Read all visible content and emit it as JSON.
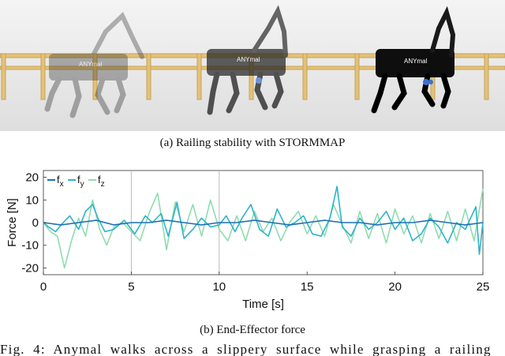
{
  "captions": {
    "a": "(a) Railing stability with STORMMAP",
    "b": "(b) End-Effector force",
    "figure": "Fig. 4: Anymal walks across a slippery surface while grasping a railing"
  },
  "robot_logo": "ANYmal",
  "colors": {
    "fx": "#1f6fb4",
    "fy": "#2eb3c9",
    "fz": "#8fdcb0",
    "rail": "#e2c27a",
    "floor_top": "#f6f6f6",
    "floor_bottom": "#d9d9d9"
  },
  "chart_data": {
    "type": "line",
    "xlabel": "Time [s]",
    "ylabel": "Force [N]",
    "xlim": [
      0,
      25
    ],
    "ylim": [
      -23,
      23
    ],
    "xticks": [
      0,
      5,
      10,
      15,
      20,
      25
    ],
    "yticks": [
      20,
      10,
      0,
      -10,
      -20
    ],
    "vlines": [
      5,
      10
    ],
    "legend": [
      "f_x",
      "f_y",
      "f_z"
    ],
    "legend_labels": [
      {
        "base": "f",
        "sub": "x"
      },
      {
        "base": "f",
        "sub": "y"
      },
      {
        "base": "f",
        "sub": "z"
      }
    ],
    "legend_position": "top-left",
    "series": [
      {
        "name": "f_x",
        "x": [
          0,
          1,
          2,
          3,
          4,
          5,
          6,
          7,
          8,
          9,
          10,
          11,
          12,
          13,
          14,
          15,
          16,
          17,
          18,
          19,
          20,
          21,
          22,
          23,
          24,
          25
        ],
        "y": [
          0,
          -1,
          0,
          1,
          -1,
          0,
          0,
          1,
          0,
          -1,
          0,
          0,
          1,
          0,
          -1,
          0,
          1,
          0,
          0,
          -1,
          0,
          0,
          1,
          0,
          -1,
          0
        ]
      },
      {
        "name": "f_y",
        "x": [
          0,
          0.3,
          0.7,
          1.0,
          1.5,
          2.0,
          2.4,
          2.8,
          3.1,
          3.5,
          4.0,
          4.6,
          5.2,
          5.8,
          6.2,
          6.7,
          7.1,
          7.6,
          8.0,
          8.5,
          9.0,
          9.5,
          10.0,
          10.4,
          10.9,
          11.3,
          11.8,
          12.3,
          12.8,
          13.3,
          13.8,
          14.3,
          14.8,
          15.3,
          15.8,
          16.3,
          16.7,
          17.0,
          17.5,
          18.0,
          18.5,
          19.0,
          19.5,
          20.0,
          20.5,
          21.0,
          21.5,
          22.0,
          22.5,
          23.0,
          23.5,
          24.0,
          24.3,
          24.6,
          24.8,
          25.0
        ],
        "y": [
          0,
          -2,
          -4,
          -1,
          3,
          -3,
          5,
          8,
          2,
          -4,
          -3,
          1,
          -5,
          3,
          0,
          4,
          -6,
          9,
          -7,
          -3,
          2,
          -2,
          -1,
          3,
          -4,
          2,
          8,
          -3,
          -6,
          6,
          -2,
          0,
          3,
          -5,
          -6,
          2,
          16,
          -2,
          -6,
          2,
          -3,
          0,
          5,
          -3,
          2,
          -8,
          -5,
          2,
          -2,
          -9,
          0,
          -3,
          2,
          7,
          -14,
          0
        ]
      },
      {
        "name": "f_z",
        "x": [
          0,
          0.4,
          0.8,
          1.2,
          1.6,
          2.0,
          2.4,
          2.8,
          3.2,
          3.6,
          4.0,
          4.5,
          5.0,
          5.5,
          6.0,
          6.5,
          7.0,
          7.5,
          8.0,
          8.5,
          9.0,
          9.5,
          10.0,
          10.5,
          11.0,
          11.5,
          12.0,
          12.5,
          13.0,
          13.5,
          14.0,
          14.5,
          15.0,
          15.5,
          16.0,
          16.5,
          17.0,
          17.5,
          18.0,
          18.5,
          19.0,
          19.5,
          20.0,
          20.5,
          21.0,
          21.5,
          22.0,
          22.5,
          23.0,
          23.5,
          24.0,
          24.5,
          25.0
        ],
        "y": [
          0,
          -4,
          -6,
          -20,
          -8,
          2,
          -6,
          10,
          -3,
          -10,
          -2,
          0,
          -4,
          -8,
          4,
          13,
          -12,
          9,
          -4,
          8,
          -6,
          10,
          -3,
          -8,
          3,
          -8,
          5,
          -4,
          2,
          -8,
          0,
          5,
          -5,
          3,
          -6,
          8,
          -1,
          -9,
          5,
          -7,
          4,
          -9,
          6,
          -5,
          3,
          -9,
          4,
          -7,
          5,
          -8,
          6,
          -8,
          15
        ]
      }
    ]
  }
}
